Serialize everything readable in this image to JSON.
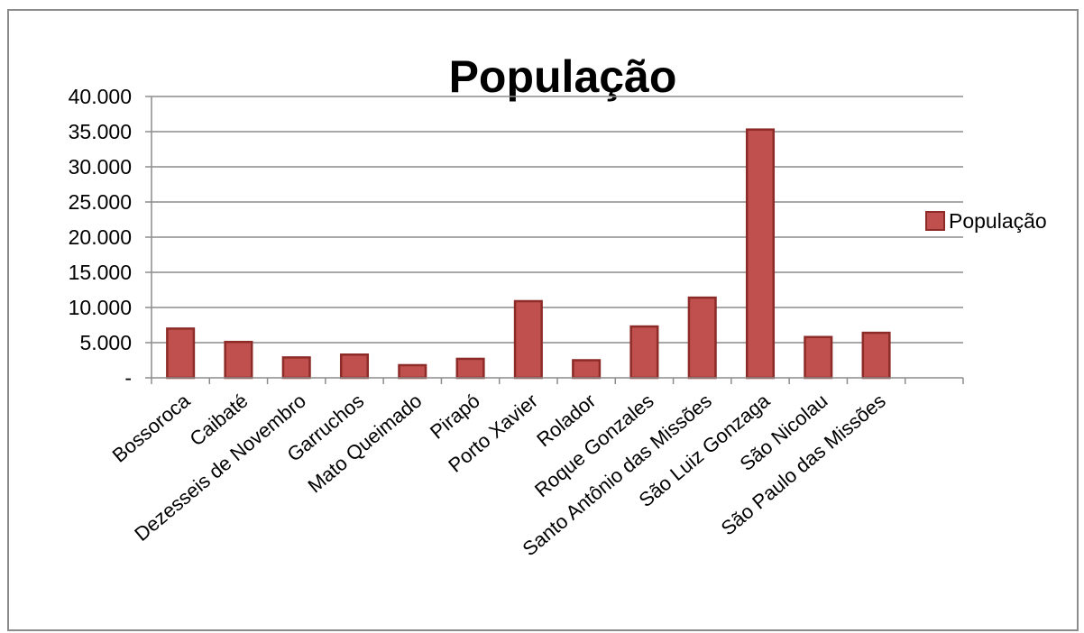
{
  "chart_data": {
    "type": "bar",
    "title": "População",
    "categories": [
      "Bossoroca",
      "Caibaté",
      "Dezesseis de Novembro",
      "Garruchos",
      "Mato Queimado",
      "Pirapó",
      "Porto Xavier",
      "Rolador",
      "Roque Gonzales",
      "Santo Antônio das Missões",
      "São Luiz Gonzaga",
      "São Nicolau",
      "São Paulo das Missões"
    ],
    "series": [
      {
        "name": "População",
        "values": [
          7000,
          5100,
          2900,
          3300,
          1800,
          2700,
          10900,
          2500,
          7300,
          11400,
          35300,
          5800,
          6400
        ],
        "color": "#c0504d",
        "stroke": "#8c2b27"
      }
    ],
    "y_ticks": [
      "-",
      "5.000",
      "10.000",
      "15.000",
      "20.000",
      "25.000",
      "30.000",
      "35.000",
      "40.000"
    ],
    "ylim": [
      0,
      40000
    ],
    "y_step": 5000,
    "grid": true,
    "legend_position": "right",
    "xlabel": "",
    "ylabel": ""
  }
}
